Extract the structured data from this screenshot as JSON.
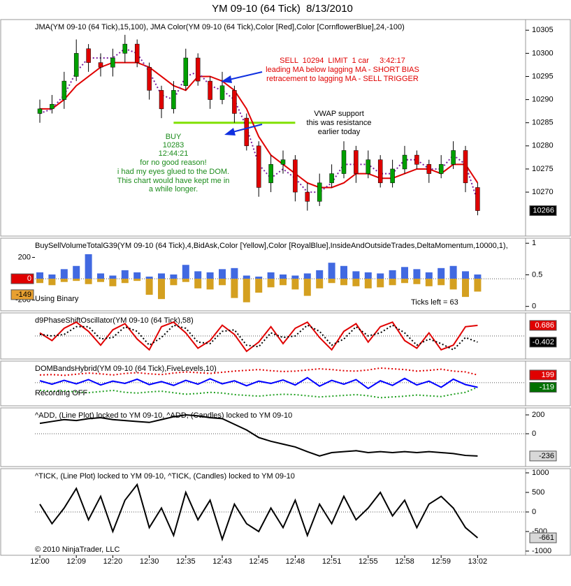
{
  "title": "YM 09-10 (64 Tick)  8/13/2010",
  "chart_data": [
    {
      "type": "candlestick",
      "title": "JMA(YM 09-10 (64 Tick),15,100), JMA Color(YM 09-10 (64 Tick),Color [Red],Color [CornflowerBlue],24,-100)",
      "open": [
        10287,
        10288,
        10290,
        10295,
        10301,
        10298,
        10297,
        10300,
        10302,
        10297,
        10292,
        10288,
        10293,
        10299,
        10294,
        10290,
        10292,
        10286,
        10280,
        10272,
        10276,
        10277,
        10270,
        10268,
        10272,
        10274,
        10279,
        10274,
        10277,
        10272,
        10275,
        10278,
        10276,
        10274,
        10276,
        10279,
        10271
      ],
      "high": [
        10290,
        10291,
        10296,
        10303,
        10302,
        10300,
        10301,
        10304,
        10303,
        10298,
        10293,
        10294,
        10301,
        10300,
        10295,
        10296,
        10293,
        10287,
        10281,
        10278,
        10279,
        10278,
        10272,
        10274,
        10276,
        10281,
        10280,
        10279,
        10278,
        10277,
        10280,
        10279,
        10277,
        10278,
        10281,
        10280,
        10272
      ],
      "low": [
        10285,
        10287,
        10288,
        10294,
        10296,
        10295,
        10295,
        10298,
        10297,
        10290,
        10286,
        10287,
        10292,
        10293,
        10288,
        10289,
        10285,
        10279,
        10269,
        10270,
        10274,
        10268,
        10266,
        10267,
        10271,
        10273,
        10272,
        10273,
        10271,
        10271,
        10274,
        10275,
        10272,
        10273,
        10275,
        10270,
        10265
      ],
      "close": [
        10288,
        10289,
        10294,
        10300,
        10298,
        10297,
        10299,
        10302,
        10298,
        10292,
        10288,
        10292,
        10299,
        10294,
        10290,
        10293,
        10287,
        10280,
        10271,
        10276,
        10277,
        10270,
        10268,
        10272,
        10274,
        10279,
        10274,
        10277,
        10272,
        10275,
        10278,
        10276,
        10274,
        10276,
        10279,
        10272,
        10266
      ],
      "up_color": "#00a000",
      "down_color": "#e00000",
      "series": [
        {
          "color": "#e00000",
          "dash": false,
          "values": [
            10288,
            10288,
            10290,
            10293,
            10295,
            10297,
            10298,
            10298,
            10298,
            10297,
            10295,
            10293,
            10292,
            10295,
            10295,
            10294,
            10292,
            10288,
            10282,
            10278,
            10276,
            10274,
            10272,
            10271,
            10271,
            10272,
            10274,
            10274,
            10273,
            10273,
            10274,
            10275,
            10275,
            10274,
            10276,
            10276,
            10272
          ]
        },
        {
          "color": "#7a1fa0",
          "dash": true,
          "values": [
            10287,
            10288,
            10291,
            10296,
            10299,
            10299,
            10299,
            10301,
            10300,
            10296,
            10291,
            10290,
            10295,
            10296,
            10293,
            10292,
            10290,
            10284,
            10276,
            10273,
            10275,
            10273,
            10270,
            10270,
            10272,
            10276,
            10276,
            10276,
            10274,
            10274,
            10277,
            10277,
            10275,
            10275,
            10278,
            10276,
            10268
          ]
        }
      ],
      "hline": {
        "value": 10285,
        "x": [
          11,
          21
        ],
        "color": "#80e000"
      },
      "annotations": [
        [
          "SELL  10294  LIMIT  1 car     3:42:17",
          "leading MA below lagging MA - SHORT BIAS",
          "retracement to lagging MA - SELL TRIGGER"
        ],
        [
          "VWAP support",
          "this was resistance",
          "earlier today"
        ],
        [
          "BUY",
          "10283",
          "12:44:21",
          "for no good reason!",
          "i had my eyes glued to the DOM.",
          "This chart would have kept me in",
          "a while longer."
        ]
      ],
      "markers": [
        {
          "value": 10266,
          "color": "#000000",
          "text_color": "#ffffff"
        }
      ],
      "ylim": [
        10260.5,
        10307.3
      ],
      "yticks": [
        10270,
        10275,
        10280,
        10285,
        10290,
        10295,
        10300,
        10305
      ],
      "zero_line": false
    },
    {
      "type": "bar",
      "title": "BuySellVolumeTotalG39(YM 09-10 (64 Tick),4,BidAsk,Color [Yellow],Color [RoyalBlue],InsideAndOutsideTrades,DeltaMomentum,10000,1),",
      "series": [
        {
          "color": "#4169e1",
          "values": [
            60,
            40,
            90,
            120,
            230,
            50,
            30,
            80,
            60,
            20,
            50,
            40,
            130,
            70,
            60,
            90,
            100,
            30,
            20,
            60,
            40,
            30,
            50,
            80,
            150,
            120,
            70,
            60,
            50,
            80,
            110,
            90,
            60,
            100,
            120,
            70,
            40
          ]
        },
        {
          "color": "#d4a020",
          "values": [
            -40,
            -60,
            -30,
            -20,
            -50,
            -30,
            -70,
            -40,
            -20,
            -150,
            -190,
            -60,
            -30,
            -90,
            -100,
            -60,
            -180,
            -220,
            -130,
            -80,
            -60,
            -100,
            -160,
            -90,
            -40,
            -60,
            -70,
            -90,
            -80,
            -60,
            -40,
            -50,
            -70,
            -60,
            -100,
            -170,
            -120
          ]
        }
      ],
      "notes": [
        "Using Binary",
        "Ticks left = 63"
      ],
      "markers": [
        {
          "value": 0,
          "color": "#e00000",
          "text_color": "#ffffff",
          "side": "left"
        },
        {
          "value": -149,
          "color": "#e8a030",
          "text_color": "#000000",
          "side": "left"
        }
      ],
      "ylim": [
        -300,
        380
      ],
      "yticks": [
        -200,
        200
      ],
      "ytick_side": "left",
      "y2lim": [
        -0.07,
        1.08
      ],
      "y2ticks": [
        0,
        0.5,
        1
      ],
      "zero_line": true
    },
    {
      "type": "line",
      "title": "d9PhaseShiftOscillator(YM 09-10 (64 Tick),58)",
      "series": [
        {
          "color": "#e00000",
          "dash": false,
          "values": [
            0.2,
            -0.3,
            0.5,
            0.9,
            0.3,
            -0.6,
            0.4,
            0.8,
            -0.2,
            -0.9,
            0.6,
            0.9,
            0.2,
            -0.8,
            -0.3,
            0.7,
            0.1,
            -1,
            -0.4,
            0.6,
            -0.5,
            0.5,
            0.9,
            -0.1,
            -0.9,
            0.3,
            0.8,
            -0.4,
            0.6,
            0.9,
            -0.3,
            -0.8,
            0.2,
            -0.9,
            -0.6,
            0.6,
            0.686
          ]
        },
        {
          "color": "#000000",
          "dash": true,
          "values": [
            0.1,
            0,
            0.1,
            0.6,
            0.6,
            -0.2,
            -0.1,
            0.6,
            0.3,
            -0.6,
            -0.1,
            0.7,
            0.5,
            -0.4,
            -0.5,
            0.3,
            0.4,
            -0.6,
            -0.7,
            0.2,
            -0.1,
            0,
            0.7,
            0.3,
            -0.6,
            -0.2,
            0.6,
            0,
            0.2,
            0.7,
            0.2,
            -0.6,
            -0.2,
            -0.5,
            -0.9,
            -0.1,
            -0.402
          ]
        }
      ],
      "markers": [
        {
          "value": 0.686,
          "color": "#e00000",
          "text_color": "#ffffff"
        },
        {
          "value": -0.402,
          "color": "#000000",
          "text_color": "#ffffff"
        }
      ],
      "ylim": [
        -1.5,
        1.5
      ],
      "yticks": [],
      "zero_line": true
    },
    {
      "type": "line",
      "title": "DOMBandsHybrid(YM 09-10 (64 Tick),FiveLevels,10)",
      "series": [
        {
          "color": "#e00000",
          "dash": true,
          "values": [
            200,
            210,
            190,
            220,
            250,
            230,
            200,
            240,
            260,
            230,
            210,
            250,
            280,
            260,
            240,
            270,
            300,
            320,
            340,
            310,
            290,
            300,
            330,
            360,
            340,
            310,
            300,
            330,
            380,
            360,
            340,
            300,
            320,
            350,
            300,
            280,
            199
          ]
        },
        {
          "color": "#20a020",
          "dash": true,
          "values": [
            -200,
            -220,
            -210,
            -240,
            -260,
            -230,
            -200,
            -250,
            -270,
            -240,
            -220,
            -260,
            -300,
            -280,
            -250,
            -270,
            -310,
            -330,
            -350,
            -320,
            -300,
            -310,
            -340,
            -370,
            -350,
            -330,
            -310,
            -340,
            -390,
            -370,
            -350,
            -320,
            -340,
            -360,
            -300,
            -250,
            -119
          ]
        },
        {
          "color": "#0000ff",
          "dash": false,
          "values": [
            50,
            -40,
            60,
            -30,
            80,
            -60,
            40,
            -20,
            90,
            -50,
            30,
            -70,
            60,
            -40,
            100,
            -30,
            50,
            -80,
            40,
            -20,
            70,
            -60,
            130,
            -90,
            60,
            -40,
            80,
            -150,
            50,
            -70,
            110,
            -60,
            40,
            -120,
            90,
            -50,
            -119
          ]
        }
      ],
      "notes": [
        "Recording OFF"
      ],
      "markers": [
        {
          "value": 199,
          "color": "#e00000",
          "text_color": "#ffffff"
        },
        {
          "value": -119,
          "color": "#007000",
          "text_color": "#ffffff"
        }
      ],
      "ylim": [
        -600,
        560
      ],
      "yticks": [],
      "zero_line": true
    },
    {
      "type": "line",
      "title": "^ADD, (Line Plot) locked to YM 09-10, ^ADD, (Candles) locked to YM 09-10",
      "series": [
        {
          "color": "#000000",
          "dash": false,
          "values": [
            110,
            130,
            150,
            140,
            160,
            170,
            150,
            140,
            130,
            120,
            150,
            180,
            200,
            190,
            170,
            160,
            100,
            40,
            -40,
            -80,
            -110,
            -140,
            -190,
            -236,
            -200,
            -190,
            -180,
            -200,
            -190,
            -200,
            -190,
            -200,
            -190,
            -200,
            -210,
            -230,
            -236
          ]
        }
      ],
      "markers": [
        {
          "value": -236,
          "color": "#d8d8d8",
          "text_color": "#000000"
        }
      ],
      "ylim": [
        -348,
        274
      ],
      "yticks": [
        0,
        200
      ],
      "zero_line": true
    },
    {
      "type": "line",
      "title": "^TICK, (Line Plot) locked to YM 09-10, ^TICK, (Candles) locked to YM 09-10",
      "series": [
        {
          "color": "#000000",
          "dash": false,
          "values": [
            200,
            -300,
            100,
            600,
            -200,
            400,
            -500,
            300,
            700,
            -400,
            100,
            -600,
            500,
            -200,
            300,
            -700,
            200,
            -300,
            -500,
            100,
            -400,
            300,
            -600,
            200,
            -300,
            400,
            -200,
            100,
            500,
            -100,
            300,
            -400,
            200,
            400,
            100,
            -400,
            -661
          ]
        }
      ],
      "notes": [
        "© 2010 NinjaTrader, LLC"
      ],
      "markers": [
        {
          "value": -661,
          "color": "#d8d8d8",
          "text_color": "#000000"
        }
      ],
      "ylim": [
        -1107,
        1107
      ],
      "yticks": [
        -1000,
        -500,
        0,
        500,
        1000
      ],
      "zero_line": true,
      "xticks": [
        {
          "value": 0,
          "label": "12:00"
        },
        {
          "value": 3,
          "label": "12:09"
        },
        {
          "value": 6,
          "label": "12:20"
        },
        {
          "value": 9,
          "label": "12:30"
        },
        {
          "value": 12,
          "label": "12:35"
        },
        {
          "value": 15,
          "label": "12:43"
        },
        {
          "value": 18,
          "label": "12:45"
        },
        {
          "value": 21,
          "label": "12:48"
        },
        {
          "value": 24,
          "label": "12:51"
        },
        {
          "value": 27,
          "label": "12:55"
        },
        {
          "value": 30,
          "label": "12:58"
        },
        {
          "value": 33,
          "label": "12:59"
        },
        {
          "value": 36,
          "label": "13:02"
        }
      ]
    }
  ]
}
